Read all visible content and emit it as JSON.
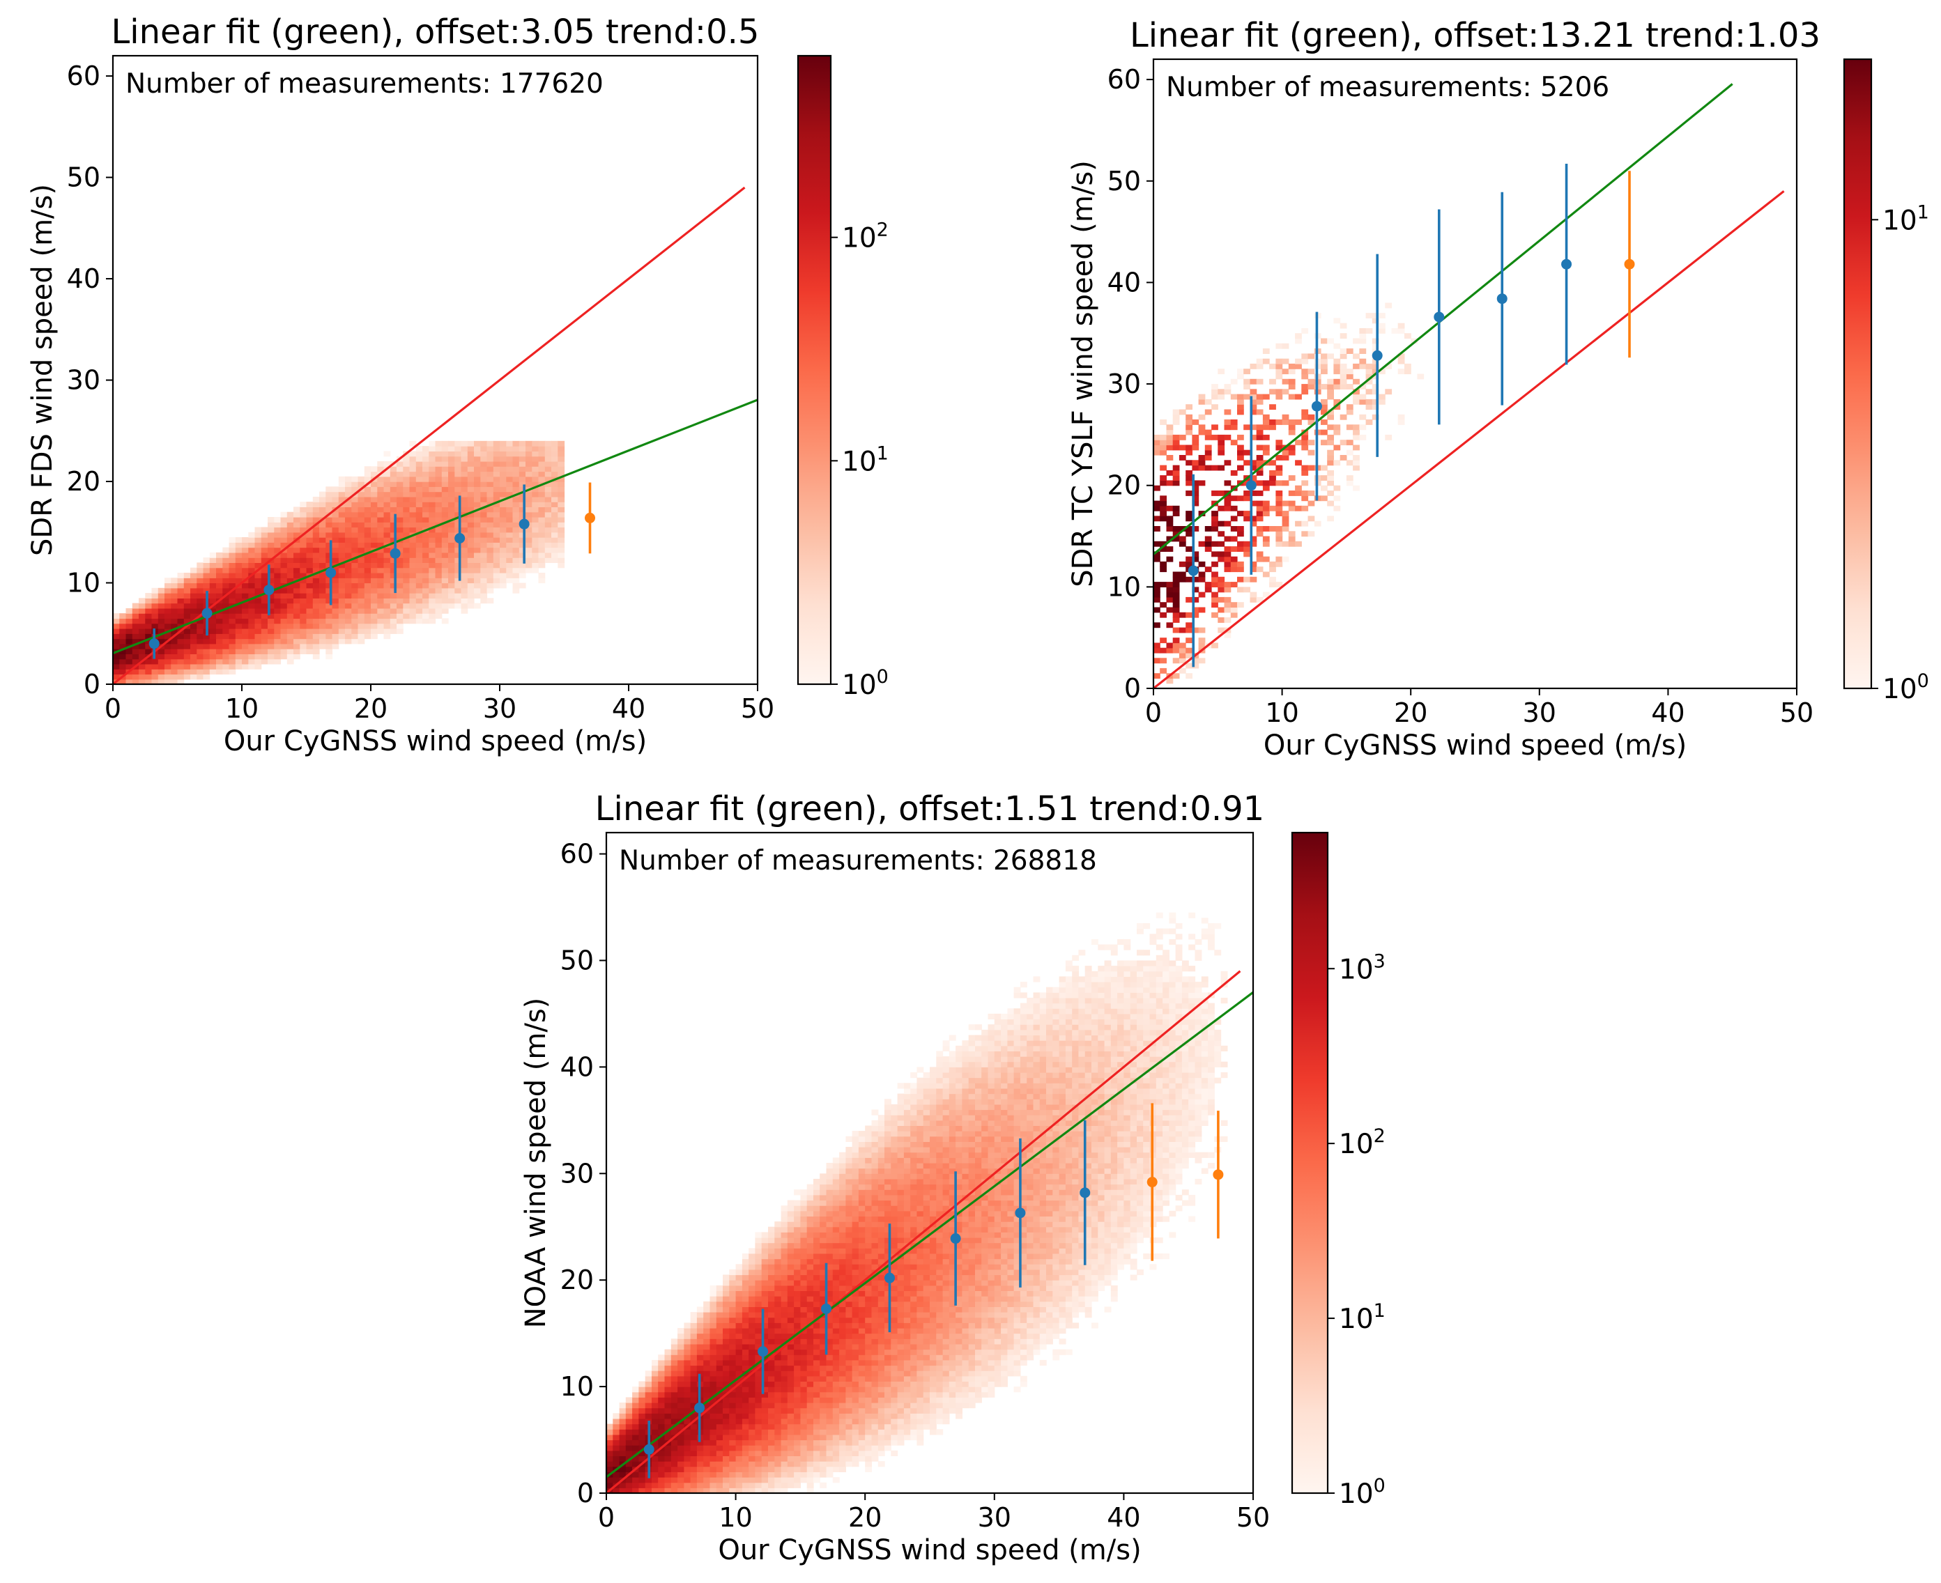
{
  "chart_data": [
    {
      "type": "histogram2d",
      "title": "Linear fit (green), offset:3.05 trend:0.5",
      "xlabel": "Our CyGNSS wind speed (m/s)",
      "ylabel": "SDR FDS wind speed (m/s)",
      "xlim": [
        0,
        50
      ],
      "ylim": [
        0,
        62
      ],
      "xticks": [
        0,
        10,
        20,
        30,
        40,
        50
      ],
      "yticks": [
        0,
        10,
        20,
        30,
        40,
        50,
        60
      ],
      "annotation": "Number of measurements: 177620",
      "colorbar": {
        "scale": "log",
        "vmin": 1,
        "vmax": 650,
        "tick_bases": [
          "10",
          "10",
          "10"
        ],
        "tick_exponents": [
          "0",
          "1",
          "2"
        ],
        "tick_values": [
          1,
          10,
          100
        ]
      },
      "density_model": {
        "type": "ridge",
        "peak_log": 2.8,
        "a": 2.9,
        "b": 0.5,
        "sigma0": 1.2,
        "sigma1": 0.12,
        "decay": 0.06,
        "xmax": 35,
        "ymax": 24
      },
      "series": [
        {
          "name": "one-to-one",
          "color": "#ee2222",
          "x": [
            0,
            49
          ],
          "y": [
            0,
            49
          ]
        },
        {
          "name": "linear fit",
          "color": "#118811",
          "x": [
            0,
            50
          ],
          "y": [
            3.05,
            28.05
          ]
        }
      ],
      "binned_means": [
        {
          "x": 3.2,
          "y": 4.0,
          "err": 1.5,
          "color": "#1f77b4"
        },
        {
          "x": 7.3,
          "y": 7.0,
          "err": 2.2,
          "color": "#1f77b4"
        },
        {
          "x": 12.1,
          "y": 9.3,
          "err": 2.5,
          "color": "#1f77b4"
        },
        {
          "x": 16.9,
          "y": 11.0,
          "err": 3.2,
          "color": "#1f77b4"
        },
        {
          "x": 21.9,
          "y": 12.9,
          "err": 3.9,
          "color": "#1f77b4"
        },
        {
          "x": 26.9,
          "y": 14.4,
          "err": 4.2,
          "color": "#1f77b4"
        },
        {
          "x": 31.9,
          "y": 15.8,
          "err": 3.9,
          "color": "#1f77b4"
        },
        {
          "x": 37.0,
          "y": 16.4,
          "err": 3.5,
          "color": "#ff7f0e"
        }
      ]
    },
    {
      "type": "histogram2d",
      "title": "Linear fit (green), offset:13.21 trend:1.03",
      "xlabel": "Our CyGNSS wind speed (m/s)",
      "ylabel": "SDR TC YSLF wind speed (m/s)",
      "xlim": [
        0,
        50
      ],
      "ylim": [
        0,
        62
      ],
      "xticks": [
        0,
        10,
        20,
        30,
        40,
        50
      ],
      "yticks": [
        0,
        10,
        20,
        30,
        40,
        50,
        60
      ],
      "annotation": "Number of measurements: 5206",
      "colorbar": {
        "scale": "log",
        "vmin": 1,
        "vmax": 22,
        "tick_bases": [
          "10",
          "10"
        ],
        "tick_exponents": [
          "0",
          "1"
        ],
        "tick_values": [
          1,
          10
        ]
      },
      "density_model": {
        "type": "scatter",
        "peak_log": 1.3,
        "a": 12.0,
        "b": 1.05,
        "sigma0": 6.0,
        "sigma1": 0.08,
        "decay": 0.08,
        "xmax": 33,
        "ymax": 58
      },
      "series": [
        {
          "name": "one-to-one",
          "color": "#ee2222",
          "x": [
            0,
            49
          ],
          "y": [
            0,
            49
          ]
        },
        {
          "name": "linear fit",
          "color": "#118811",
          "x": [
            0,
            45
          ],
          "y": [
            13.21,
            59.56
          ]
        }
      ],
      "binned_means": [
        {
          "x": 3.1,
          "y": 11.6,
          "err": 9.5,
          "color": "#1f77b4"
        },
        {
          "x": 7.6,
          "y": 20.0,
          "err": 8.8,
          "color": "#1f77b4"
        },
        {
          "x": 12.7,
          "y": 27.8,
          "err": 9.3,
          "color": "#1f77b4"
        },
        {
          "x": 17.4,
          "y": 32.8,
          "err": 10.0,
          "color": "#1f77b4"
        },
        {
          "x": 22.2,
          "y": 36.6,
          "err": 10.6,
          "color": "#1f77b4"
        },
        {
          "x": 27.1,
          "y": 38.4,
          "err": 10.5,
          "color": "#1f77b4"
        },
        {
          "x": 32.1,
          "y": 41.8,
          "err": 9.9,
          "color": "#1f77b4"
        },
        {
          "x": 37.0,
          "y": 41.8,
          "err": 9.2,
          "color": "#ff7f0e"
        }
      ]
    },
    {
      "type": "histogram2d",
      "title": "Linear fit (green), offset:1.51 trend:0.91",
      "xlabel": "Our CyGNSS wind speed (m/s)",
      "ylabel": "NOAA wind speed (m/s)",
      "xlim": [
        0,
        50
      ],
      "ylim": [
        0,
        62
      ],
      "xticks": [
        0,
        10,
        20,
        30,
        40,
        50
      ],
      "yticks": [
        0,
        10,
        20,
        30,
        40,
        50,
        60
      ],
      "annotation": "Number of measurements: 268818",
      "colorbar": {
        "scale": "log",
        "vmin": 1,
        "vmax": 6000,
        "tick_bases": [
          "10",
          "10",
          "10",
          "10"
        ],
        "tick_exponents": [
          "0",
          "1",
          "2",
          "3"
        ],
        "tick_values": [
          1,
          10,
          100,
          1000
        ]
      },
      "density_model": {
        "type": "ridge",
        "peak_log": 3.7,
        "a": 1.6,
        "b": 0.85,
        "sigma0": 1.3,
        "sigma1": 0.22,
        "decay": 0.075,
        "xmax": 48,
        "ymax": 55
      },
      "series": [
        {
          "name": "one-to-one",
          "color": "#ee2222",
          "x": [
            0,
            49
          ],
          "y": [
            0,
            49
          ]
        },
        {
          "name": "linear fit",
          "color": "#118811",
          "x": [
            0,
            50
          ],
          "y": [
            1.51,
            47.01
          ]
        }
      ],
      "binned_means": [
        {
          "x": 3.3,
          "y": 4.1,
          "err": 2.7,
          "color": "#1f77b4"
        },
        {
          "x": 7.2,
          "y": 8.0,
          "err": 3.2,
          "color": "#1f77b4"
        },
        {
          "x": 12.1,
          "y": 13.3,
          "err": 4.0,
          "color": "#1f77b4"
        },
        {
          "x": 17.0,
          "y": 17.3,
          "err": 4.3,
          "color": "#1f77b4"
        },
        {
          "x": 21.9,
          "y": 20.2,
          "err": 5.1,
          "color": "#1f77b4"
        },
        {
          "x": 27.0,
          "y": 23.9,
          "err": 6.3,
          "color": "#1f77b4"
        },
        {
          "x": 32.0,
          "y": 26.3,
          "err": 7.0,
          "color": "#1f77b4"
        },
        {
          "x": 37.0,
          "y": 28.2,
          "err": 6.8,
          "color": "#1f77b4"
        },
        {
          "x": 42.2,
          "y": 29.2,
          "err": 7.4,
          "color": "#ff7f0e"
        },
        {
          "x": 47.3,
          "y": 29.9,
          "err": 6.0,
          "color": "#ff7f0e"
        }
      ]
    }
  ]
}
